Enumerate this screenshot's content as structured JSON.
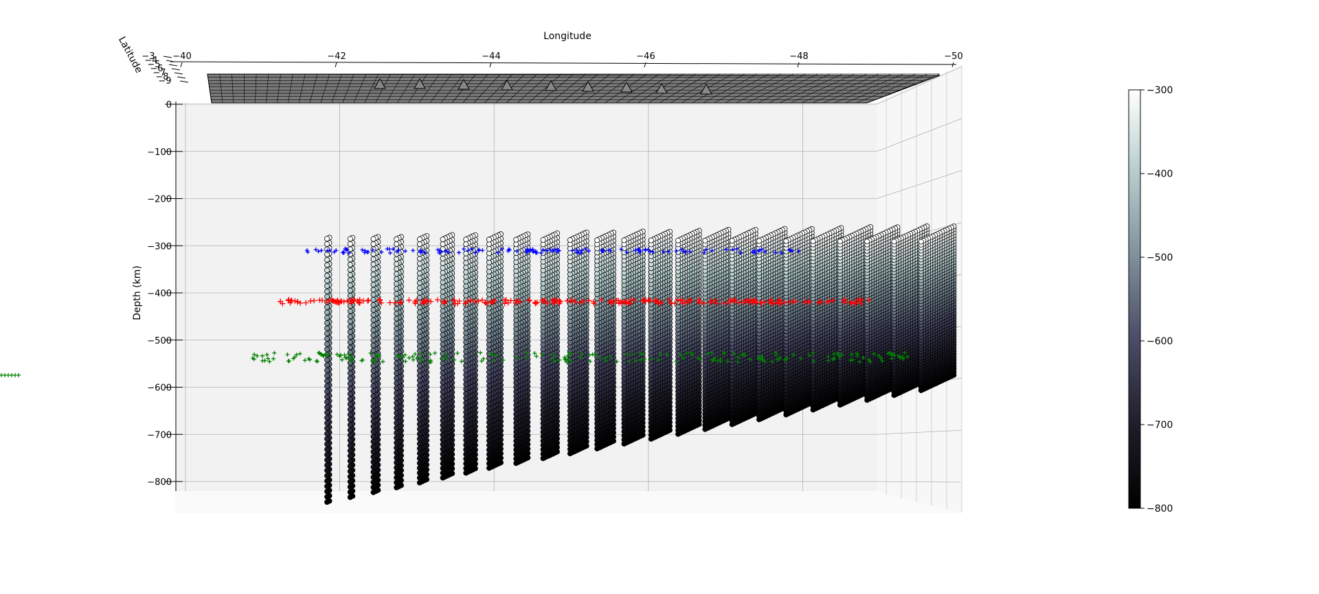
{
  "chart_data": {
    "type": "scatter",
    "projection": "3d",
    "title": "",
    "xlabel": "Longitude",
    "ylabel": "Latitude",
    "zlabel": "Depth (km)",
    "xlim": [
      -40,
      -50
    ],
    "zlim": [
      -800,
      0
    ],
    "x_ticks": [
      "−40",
      "−42",
      "−44",
      "−46",
      "−48",
      "−50"
    ],
    "y_ticks": [
      "−3",
      "−4",
      "−5",
      "−6",
      "−7",
      "−8",
      "−9"
    ],
    "z_ticks": [
      "0",
      "−100",
      "−200",
      "−300",
      "−400",
      "−500",
      "−600",
      "−700",
      "−800"
    ],
    "grid": true,
    "colorbar": {
      "colormap": "bone",
      "range": [
        -800,
        -300
      ],
      "ticks": [
        "−300",
        "−400",
        "−500",
        "−600",
        "−700",
        "−800"
      ],
      "tick_values": [
        -300,
        -400,
        -500,
        -600,
        -700,
        -800
      ],
      "colors": [
        "#000000",
        "#1e1e2a",
        "#4a4a66",
        "#7f8f9b",
        "#b5cccc",
        "#ffffff"
      ]
    },
    "grid_points": {
      "marker": "circle",
      "color_by": "depth",
      "depth_range": [
        -800,
        -300
      ],
      "depth_step": 10,
      "longitudes": [
        -41.8,
        -42.1,
        -42.4,
        -42.7,
        -43.0,
        -43.3,
        -43.6,
        -43.9,
        -44.25,
        -44.6,
        -44.95,
        -45.3,
        -45.65,
        -46.0,
        -46.35,
        -46.7,
        -47.05,
        -47.4,
        -47.75,
        -48.1,
        -48.45,
        -48.8,
        -49.15,
        -49.5
      ]
    },
    "stations": {
      "marker": "triangle",
      "color": "#888888",
      "depth": 0,
      "longitudes": [
        -42.9,
        -43.5,
        -44.0,
        -44.6,
        -45.1,
        -45.6,
        -46.1,
        -46.6,
        -47.2
      ]
    },
    "series": [
      {
        "name": "",
        "marker": "+",
        "color": "#0000ff",
        "depth": -410,
        "lon_range": [
          -41.6,
          -48.2
        ]
      },
      {
        "name": "",
        "marker": "+",
        "color": "#ff0000",
        "depth": -535,
        "lon_range": [
          -41.3,
          -49.0
        ]
      },
      {
        "name": "",
        "marker": "+",
        "color": "#008000",
        "depth": -675,
        "lon_range": [
          -40.9,
          -49.5
        ]
      }
    ]
  }
}
